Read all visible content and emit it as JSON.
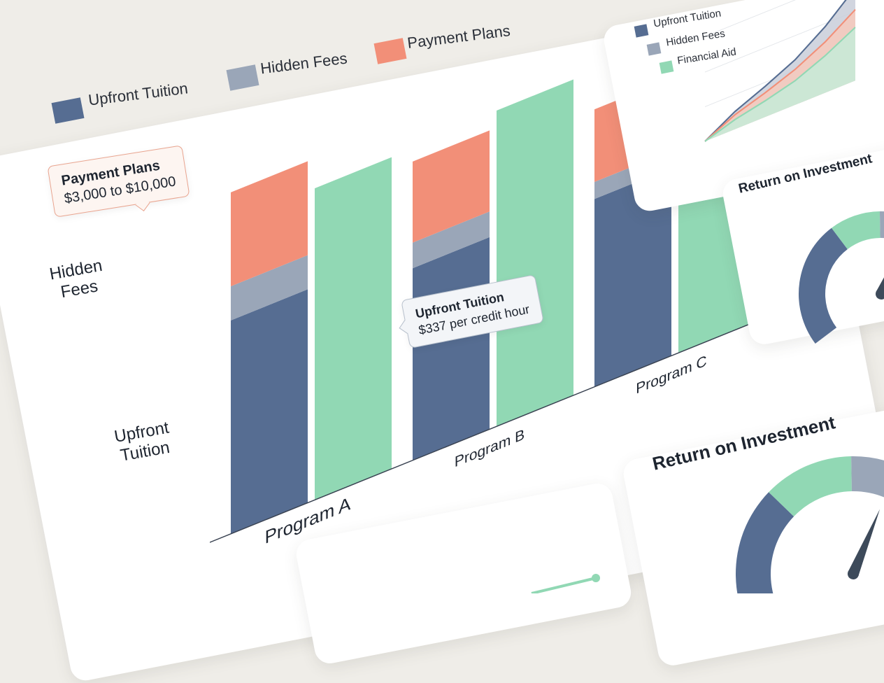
{
  "chart_data": [
    {
      "type": "bar",
      "stacked": true,
      "categories": [
        "Program A",
        "Program B",
        "Program C"
      ],
      "series": [
        {
          "name": "Upfront Tuition",
          "values": [
            50,
            45,
            44
          ],
          "stack": "cost"
        },
        {
          "name": "Hidden Fees",
          "values": [
            8,
            6,
            4
          ],
          "stack": "cost"
        },
        {
          "name": "Payment Plans",
          "values": [
            22,
            19,
            17
          ],
          "stack": "cost"
        },
        {
          "name": "Financial Aid",
          "values": [
            73,
            74,
            75
          ],
          "stack": "aid"
        }
      ],
      "legend": [
        "Upfront Tuition",
        "Hidden Fees",
        "Payment Plans"
      ],
      "side_labels": [
        "Hidden Fees",
        "Upfront Tuition"
      ],
      "annotations": [
        {
          "title": "Payment Plans",
          "text": "$3,000 to $10,000"
        },
        {
          "title": "Upfront Tuition",
          "text": "$337 per credit hour"
        }
      ],
      "ylim": [
        0,
        85
      ],
      "title": ""
    },
    {
      "type": "area",
      "x": [
        1,
        2,
        3,
        4,
        5,
        6
      ],
      "series": [
        {
          "name": "Upfront Tuition",
          "values": [
            0,
            22,
            38,
            56,
            82,
            115
          ]
        },
        {
          "name": "Hidden Fees",
          "values": [
            0,
            18,
            30,
            44,
            63,
            88
          ]
        },
        {
          "name": "Financial Aid",
          "values": [
            0,
            12,
            20,
            30,
            46,
            66
          ]
        }
      ],
      "legend": [
        "Upfront Tuition",
        "Hidden Fees",
        "Financial Aid"
      ],
      "ylim": [
        0,
        130
      ]
    },
    {
      "type": "gauge",
      "title": "Return on Investment",
      "segments": [
        "Upfront Tuition",
        "Financial Aid",
        "Hidden Fees",
        "Payment Plans"
      ]
    }
  ],
  "colors": {
    "tuition": "#566d92",
    "fees": "#9aa6b8",
    "plans": "#f28f78",
    "aid": "#91d8b4"
  },
  "cards": {
    "roi_small": {
      "title": "Return on Investment"
    },
    "roi_large": {
      "title": "Return on Investment"
    }
  }
}
